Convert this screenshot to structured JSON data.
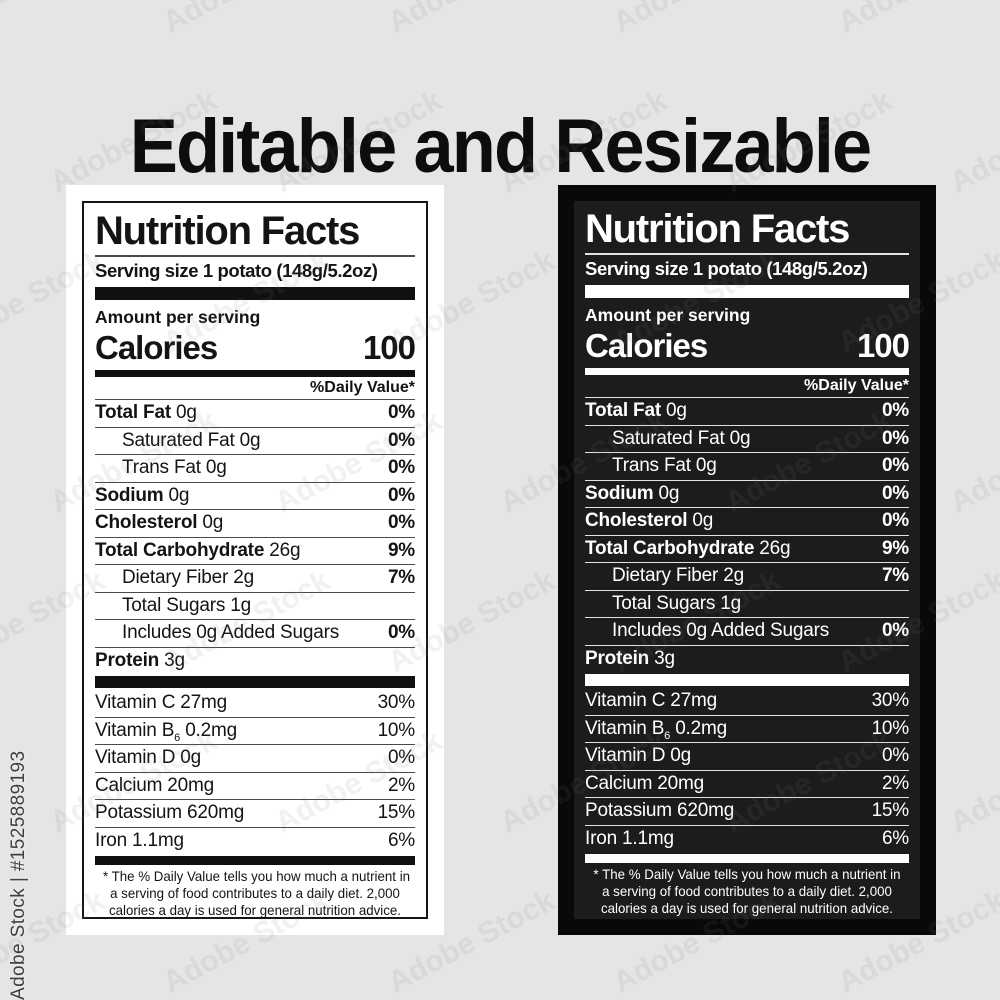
{
  "page": {
    "title": "Editable and Resizable",
    "watermark_diagonal": "Adobe Stock",
    "watermark_side": "Adobe Stock | #1525889193"
  },
  "colors": {
    "background": "#e5e5e6",
    "light_card": {
      "bg": "#ffffff",
      "text": "#141414"
    },
    "dark_card": {
      "bg": "#090909",
      "panel": "#1c1c1c",
      "text": "#ffffff"
    }
  },
  "label": {
    "title": "Nutrition Facts",
    "serving_size": "Serving size 1 potato (148g/5.2oz)",
    "amount_per_serving": "Amount per serving",
    "calories_label": "Calories",
    "calories_value": "100",
    "daily_value_header": "%Daily Value*",
    "rows": [
      {
        "name": "Total Fat",
        "rest": " 0g",
        "pct": "0%"
      },
      {
        "name": "",
        "rest": "Saturated Fat 0g",
        "pct": "0%"
      },
      {
        "name": "",
        "rest": "Trans Fat 0g",
        "pct": "0%"
      },
      {
        "name": "Sodium",
        "rest": " 0g",
        "pct": "0%"
      },
      {
        "name": "Cholesterol",
        "rest": " 0g",
        "pct": "0%"
      },
      {
        "name": "Total Carbohydrate",
        "rest": " 26g",
        "pct": "9%"
      },
      {
        "name": "",
        "rest": "Dietary Fiber 2g",
        "pct": "7%"
      },
      {
        "name": "",
        "rest": "Total Sugars 1g",
        "pct": ""
      },
      {
        "name": "",
        "rest": "Includes 0g Added Sugars",
        "pct": "0%"
      },
      {
        "name": "Protein",
        "rest": " 3g",
        "pct": ""
      }
    ],
    "vitamins": [
      {
        "pre": "Vitamin C 27mg",
        "sub": "",
        "post": "",
        "pct": "30%"
      },
      {
        "pre": "Vitamin B",
        "sub": "6",
        "post": " 0.2mg",
        "pct": "10%"
      },
      {
        "pre": "Vitamin D 0g",
        "sub": "",
        "post": "",
        "pct": "0%"
      },
      {
        "pre": "Calcium 20mg",
        "sub": "",
        "post": "",
        "pct": "2%"
      },
      {
        "pre": "Potassium 620mg",
        "sub": "",
        "post": "",
        "pct": "15%"
      },
      {
        "pre": "Iron 1.1mg",
        "sub": "",
        "post": "",
        "pct": "6%"
      }
    ],
    "footnote_lines": [
      "* The % Daily Value tells you how much a nutrient in",
      "a serving of food contributes to a daily diet. 2,000",
      "calories a day is used for general nutrition advice."
    ]
  }
}
